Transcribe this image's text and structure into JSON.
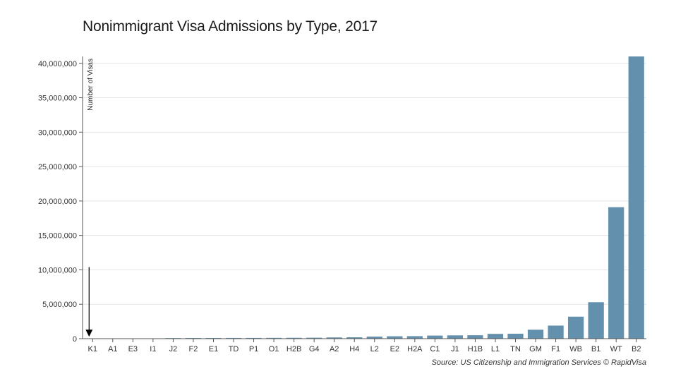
{
  "chart_data": {
    "type": "bar",
    "title": "Nonimmigrant Visa Admissions by Type, 2017",
    "xlabel": "",
    "ylabel": "Number of Visas",
    "source": "Source: US Citizenship and Immigration Services © RapidVisa",
    "ylim": [
      0,
      41000000
    ],
    "yticks": [
      0,
      5000000,
      10000000,
      15000000,
      20000000,
      25000000,
      30000000,
      35000000,
      40000000
    ],
    "ytick_labels": [
      "0",
      "5,000,000",
      "10,000,000",
      "15,000,000",
      "20,000,000",
      "25,000,000",
      "30,000,000",
      "35,000,000",
      "40,000,000"
    ],
    "categories": [
      "K1",
      "A1",
      "E3",
      "I1",
      "J2",
      "F2",
      "E1",
      "TD",
      "P1",
      "O1",
      "H2B",
      "G4",
      "A2",
      "H4",
      "L2",
      "E2",
      "H2A",
      "C1",
      "J1",
      "H1B",
      "L1",
      "TN",
      "GM",
      "F1",
      "WB",
      "B1",
      "WT",
      "B2"
    ],
    "values": [
      30000,
      35000,
      40000,
      45000,
      90000,
      100000,
      105000,
      110000,
      115000,
      120000,
      130000,
      140000,
      180000,
      200000,
      300000,
      350000,
      370000,
      450000,
      480000,
      500000,
      700000,
      720000,
      1300000,
      1900000,
      3200000,
      5300000,
      19100000,
      41000000
    ],
    "bar_color": "#6391ad",
    "grid": true,
    "annotation": {
      "type": "arrow",
      "from_value": 10400000,
      "to_value": 800000,
      "category": "K1"
    }
  }
}
